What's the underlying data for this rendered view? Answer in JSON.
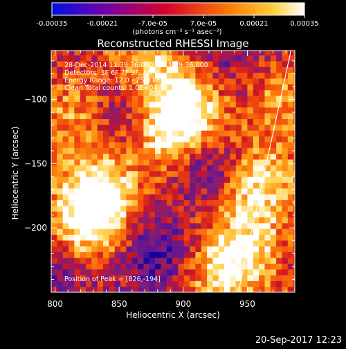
{
  "chart_data": {
    "type": "heatmap",
    "title": "Reconstructed RHESSI Image",
    "xlabel": "Heliocentric X (arcsec)",
    "ylabel": "Heliocentric Y (arcsec)",
    "xlim": [
      797,
      987
    ],
    "ylim": [
      -250,
      -62
    ],
    "xticks": [
      800,
      850,
      900,
      950
    ],
    "yticks": [
      -100,
      -150,
      -200
    ],
    "colorbar": {
      "range": [
        -0.00035,
        0.00035
      ],
      "ticks": [
        "-0.00035",
        "-0.00021",
        "-7.0e-05",
        "7.0e-05",
        "0.00021",
        "0.00035"
      ],
      "tick_values": [
        -0.00035,
        -0.00021,
        -7e-05,
        7e-05,
        0.00021,
        0.00035
      ],
      "unit": "(photons cm⁻² s⁻¹ asec⁻²)",
      "colors": [
        "#0010e0",
        "#6e00b0",
        "#d8002a",
        "#ff7a00",
        "#ffd040",
        "#ffffff"
      ]
    },
    "annotations": [
      "28-Dec-2014 11:39:36.000 to 11:49:36.000",
      "Detectors: 3F 6F 7F 9F, Att 0",
      "Energy Range: 12.0 - 25.0 keV",
      "Clean    Total counts: 1.0E+04",
      "Position of Peak = [826,-194]"
    ],
    "peak": [
      826,
      -194
    ],
    "limb_line": [
      [
        943,
        -250
      ],
      [
        984,
        -62
      ]
    ],
    "bright_regions": [
      {
        "x": 826,
        "y": -194,
        "level": 1.0
      },
      {
        "x": 905,
        "y": -105,
        "level": 0.9
      },
      {
        "x": 838,
        "y": -160,
        "level": 0.85
      },
      {
        "x": 870,
        "y": -75,
        "level": 0.75
      },
      {
        "x": 960,
        "y": -165,
        "level": 0.85
      },
      {
        "x": 948,
        "y": -215,
        "level": 0.75
      },
      {
        "x": 885,
        "y": -125,
        "level": 0.75
      },
      {
        "x": 928,
        "y": -240,
        "level": 0.6
      },
      {
        "x": 812,
        "y": -110,
        "level": 0.5
      },
      {
        "x": 975,
        "y": -100,
        "level": 0.55
      }
    ],
    "dark_regions": [
      {
        "x": 860,
        "y": -100,
        "level": 0.8
      },
      {
        "x": 920,
        "y": -150,
        "level": 0.75
      },
      {
        "x": 880,
        "y": -220,
        "level": 0.8
      },
      {
        "x": 848,
        "y": -140,
        "level": 0.55
      },
      {
        "x": 935,
        "y": -78,
        "level": 0.5
      },
      {
        "x": 800,
        "y": -235,
        "level": 0.45
      }
    ]
  },
  "footer": {
    "date": "20-Sep-2017 12:23"
  }
}
